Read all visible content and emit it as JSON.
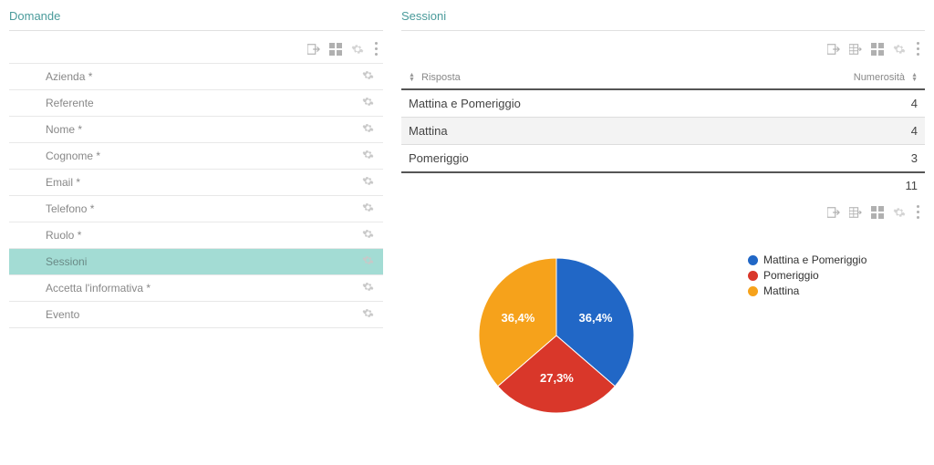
{
  "left": {
    "title": "Domande",
    "fields": [
      {
        "label": "Azienda *",
        "selected": false
      },
      {
        "label": "Referente",
        "selected": false
      },
      {
        "label": "Nome *",
        "selected": false
      },
      {
        "label": "Cognome *",
        "selected": false
      },
      {
        "label": "Email *",
        "selected": false
      },
      {
        "label": "Telefono *",
        "selected": false
      },
      {
        "label": "Ruolo *",
        "selected": false
      },
      {
        "label": "Sessioni",
        "selected": true
      },
      {
        "label": "Accetta l'informativa *",
        "selected": false
      },
      {
        "label": "Evento",
        "selected": false
      }
    ]
  },
  "right": {
    "title": "Sessioni",
    "table": {
      "col_response": "Risposta",
      "col_count": "Numerosità",
      "rows": [
        {
          "response": "Mattina e Pomeriggio",
          "count": "4",
          "alt": false
        },
        {
          "response": "Mattina",
          "count": "4",
          "alt": true
        },
        {
          "response": "Pomeriggio",
          "count": "3",
          "alt": false
        }
      ],
      "total": "11"
    },
    "chart": {
      "type": "pie",
      "radius": 85,
      "background_color": "#ffffff",
      "slices": [
        {
          "label": "Mattina e Pomeriggio",
          "value": 4,
          "pct_label": "36,4%",
          "color": "#2167c6"
        },
        {
          "label": "Pomeriggio",
          "value": 3,
          "pct_label": "27,3%",
          "color": "#d9372a"
        },
        {
          "label": "Mattina",
          "value": 4,
          "pct_label": "36,4%",
          "color": "#f6a21b"
        }
      ],
      "legend_items": [
        {
          "label": "Mattina e Pomeriggio",
          "color": "#2167c6"
        },
        {
          "label": "Pomeriggio",
          "color": "#d9372a"
        },
        {
          "label": "Mattina",
          "color": "#f6a21b"
        }
      ],
      "stroke": "#ffffff",
      "stroke_width": 1
    }
  },
  "icons": {
    "export": "export-icon",
    "grid": "grid-icon",
    "grid2": "grid2-icon",
    "gear": "gear-icon",
    "menu": "menu-icon"
  }
}
